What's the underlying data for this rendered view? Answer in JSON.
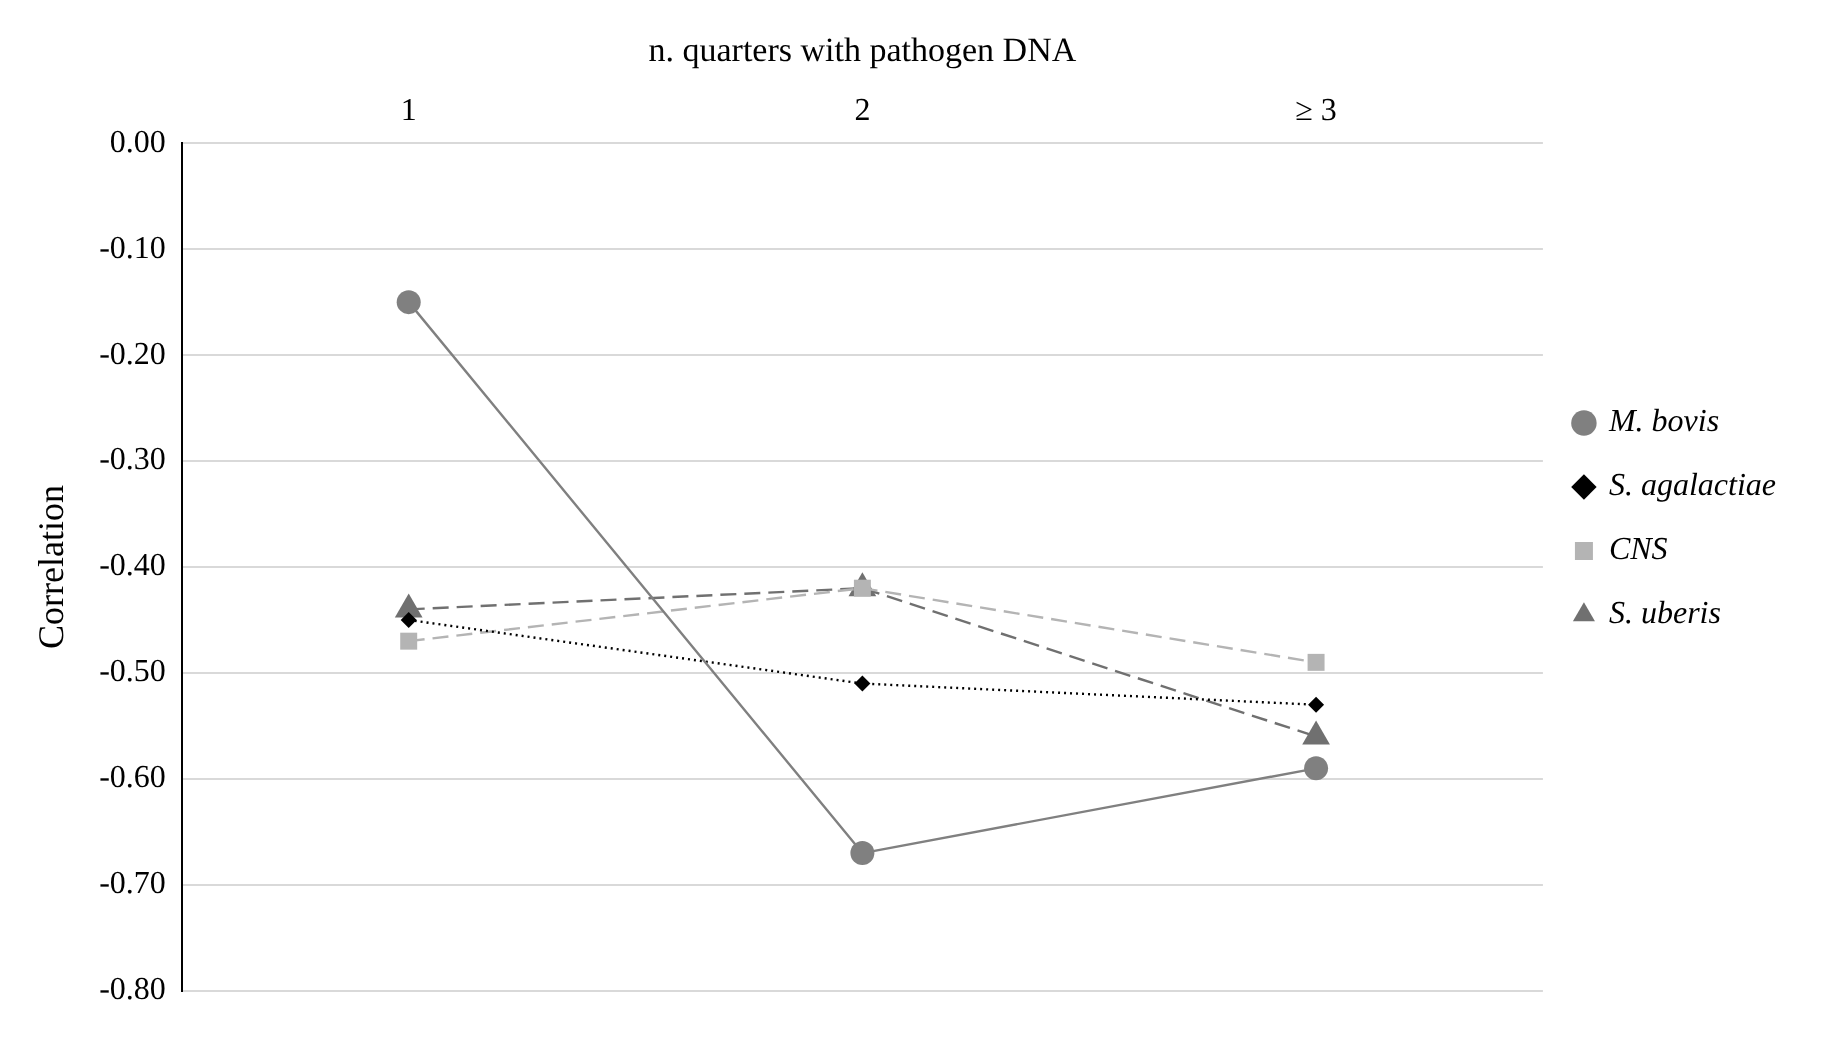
{
  "chart_data": {
    "type": "line",
    "xlabel": "n. quarters with pathogen DNA",
    "ylabel": "Correlation",
    "categories": [
      "1",
      "2",
      "≥ 3"
    ],
    "series": [
      {
        "name": "M. bovis",
        "color": "#808080",
        "marker": "circle",
        "line_style": "solid",
        "values": [
          -0.15,
          -0.67,
          -0.59
        ]
      },
      {
        "name": "S. agalactiae",
        "color": "#000000",
        "marker": "diamond",
        "line_style": "dotted",
        "values": [
          -0.45,
          -0.51,
          -0.53
        ]
      },
      {
        "name": "CNS",
        "color": "#b4b4b4",
        "marker": "square",
        "line_style": "dashed",
        "values": [
          -0.47,
          -0.42,
          -0.49
        ]
      },
      {
        "name": "S. uberis",
        "color": "#707070",
        "marker": "triangle",
        "line_style": "dashed",
        "values": [
          -0.44,
          -0.42,
          -0.56
        ]
      }
    ],
    "ylim": [
      -0.8,
      0
    ],
    "yticks": [
      {
        "value": 0,
        "label": "0.00"
      },
      {
        "value": -0.1,
        "label": "-0.10"
      },
      {
        "value": -0.2,
        "label": "-0.20"
      },
      {
        "value": -0.3,
        "label": "-0.30"
      },
      {
        "value": -0.4,
        "label": "-0.40"
      },
      {
        "value": -0.5,
        "label": "-0.50"
      },
      {
        "value": -0.6,
        "label": "-0.60"
      },
      {
        "value": -0.7,
        "label": "-0.70"
      },
      {
        "value": -0.8,
        "label": "-0.80"
      }
    ],
    "grid": "y",
    "legend": "right"
  }
}
